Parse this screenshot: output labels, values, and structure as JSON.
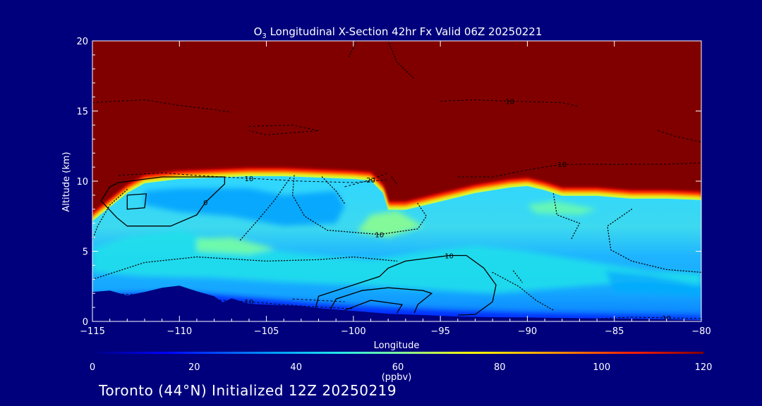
{
  "chart_data": {
    "type": "heatmap",
    "title_prefix": "O",
    "title_sub": "3",
    "title_rest": " Longitudinal X-Section 42hr  Fx Valid 06Z 20250221",
    "xlabel": "Longitude",
    "ylabel": "Altitude (km)",
    "xlim": [
      -115,
      -80
    ],
    "ylim": [
      0,
      20
    ],
    "xticks": [
      -115,
      -110,
      -105,
      -100,
      -95,
      -90,
      -85,
      -80
    ],
    "xtick_labels": [
      "−115",
      "−110",
      "−105",
      "−100",
      "−95",
      "−90",
      "−85",
      "−80"
    ],
    "yticks": [
      0,
      5,
      10,
      15,
      20
    ],
    "ytick_labels": [
      "0",
      "5",
      "10",
      "15",
      "20"
    ],
    "colorbar": {
      "ticks": [
        0,
        20,
        40,
        60,
        80,
        100,
        120
      ],
      "tick_labels": [
        "0",
        "20",
        "40",
        "60",
        "80",
        "100",
        "120"
      ],
      "units": "(ppbv)",
      "range": [
        0,
        120
      ]
    },
    "terrain_km": [
      [
        -115,
        2.1
      ],
      [
        -114,
        2.2
      ],
      [
        -113,
        1.85
      ],
      [
        -112,
        2.1
      ],
      [
        -111,
        2.4
      ],
      [
        -110,
        2.55
      ],
      [
        -109,
        2.15
      ],
      [
        -108,
        1.8
      ],
      [
        -107.5,
        1.35
      ],
      [
        -107,
        1.65
      ],
      [
        -106,
        1.25
      ],
      [
        -105,
        1.2
      ],
      [
        -104,
        1.15
      ],
      [
        -103,
        1.1
      ],
      [
        -102,
        0.95
      ],
      [
        -101,
        0.85
      ],
      [
        -100,
        0.75
      ],
      [
        -99,
        0.65
      ],
      [
        -98,
        0.55
      ],
      [
        -97,
        0.5
      ],
      [
        -96,
        0.45
      ],
      [
        -95,
        0.4
      ],
      [
        -94,
        0.35
      ],
      [
        -92,
        0.3
      ],
      [
        -90,
        0.28
      ],
      [
        -88,
        0.25
      ],
      [
        -86,
        0.22
      ],
      [
        -84,
        0.2
      ],
      [
        -82,
        0.15
      ],
      [
        -80,
        0.1
      ]
    ],
    "tropopause_km": [
      [
        -115,
        7.2
      ],
      [
        -114,
        8.2
      ],
      [
        -113,
        9.2
      ],
      [
        -112,
        9.9
      ],
      [
        -110,
        10.2
      ],
      [
        -108,
        10.3
      ],
      [
        -106,
        10.4
      ],
      [
        -104,
        10.4
      ],
      [
        -102,
        10.3
      ],
      [
        -100,
        10.2
      ],
      [
        -99,
        10.1
      ],
      [
        -98.3,
        9.2
      ],
      [
        -98,
        8.0
      ],
      [
        -97,
        8.0
      ],
      [
        -95,
        8.6
      ],
      [
        -93,
        9.2
      ],
      [
        -91,
        9.6
      ],
      [
        -90,
        9.7
      ],
      [
        -89,
        9.4
      ],
      [
        -88,
        9.0
      ],
      [
        -86,
        9.0
      ],
      [
        -84,
        8.8
      ],
      [
        -82,
        8.8
      ],
      [
        -80,
        8.7
      ]
    ],
    "ozone_bands": [
      {
        "polygon": [
          [
            -112,
            9.3
          ],
          [
            -110,
            9.5
          ],
          [
            -106,
            9.5
          ],
          [
            -104,
            9.0
          ],
          [
            -101,
            9.3
          ],
          [
            -100.5,
            8.2
          ],
          [
            -101,
            7.0
          ],
          [
            -104,
            6.8
          ],
          [
            -107,
            7.5
          ],
          [
            -110,
            7.8
          ],
          [
            -112,
            8.3
          ]
        ],
        "ppbv": 36
      },
      {
        "polygon": [
          [
            -115,
            5.2
          ],
          [
            -113,
            6.0
          ],
          [
            -110,
            6.5
          ],
          [
            -107,
            5.5
          ],
          [
            -104,
            5.0
          ],
          [
            -101,
            4.6
          ],
          [
            -99,
            4.4
          ],
          [
            -96,
            5.0
          ],
          [
            -93,
            5.4
          ],
          [
            -90,
            5.0
          ],
          [
            -87,
            4.4
          ],
          [
            -85,
            4.0
          ],
          [
            -83,
            3.6
          ],
          [
            -80,
            3.4
          ],
          [
            -80,
            2.6
          ],
          [
            -84,
            2.8
          ],
          [
            -88,
            2.4
          ],
          [
            -92,
            2.0
          ],
          [
            -96,
            2.3
          ],
          [
            -100,
            2.6
          ],
          [
            -104,
            2.8
          ],
          [
            -108,
            3.1
          ],
          [
            -112,
            3.2
          ],
          [
            -115,
            3.5
          ]
        ],
        "ppbv": 47
      },
      {
        "polygon": [
          [
            -109,
            5.9
          ],
          [
            -107,
            6.0
          ],
          [
            -104.5,
            5.2
          ],
          [
            -106,
            4.8
          ],
          [
            -109,
            5.0
          ]
        ],
        "ppbv": 60
      },
      {
        "polygon": [
          [
            -99,
            7.6
          ],
          [
            -97.5,
            7.9
          ],
          [
            -96,
            6.8
          ],
          [
            -98,
            6.0
          ],
          [
            -99.8,
            6.4
          ]
        ],
        "ppbv": 62
      },
      {
        "polygon": [
          [
            -90,
            8.3
          ],
          [
            -88.5,
            8.6
          ],
          [
            -86,
            8.0
          ],
          [
            -87,
            7.6
          ],
          [
            -89.5,
            7.7
          ]
        ],
        "ppbv": 58
      },
      {
        "polygon": [
          [
            -85.5,
            3.6
          ],
          [
            -83,
            3.3
          ],
          [
            -81,
            2.8
          ],
          [
            -80,
            2.5
          ],
          [
            -80,
            1.8
          ],
          [
            -85,
            2.1
          ]
        ],
        "ppbv": 38
      },
      {
        "polygon": [
          [
            -115,
            1.9
          ],
          [
            -110,
            2.1
          ],
          [
            -105,
            1.6
          ],
          [
            -100,
            1.1
          ],
          [
            -95,
            0.8
          ],
          [
            -90,
            0.6
          ],
          [
            -85,
            0.5
          ],
          [
            -80,
            0.4
          ],
          [
            -80,
            0
          ],
          [
            -115,
            0
          ]
        ],
        "ppbv": 18
      }
    ],
    "solid_contours": [
      {
        "label": "0",
        "points": [
          [
            -114.0,
            9.6
          ],
          [
            -113.5,
            9.9
          ],
          [
            -111,
            10.3
          ],
          [
            -109,
            10.3
          ],
          [
            -107.4,
            10.3
          ],
          [
            -107.4,
            9.8
          ],
          [
            -108.5,
            8.5
          ],
          [
            -109,
            7.6
          ],
          [
            -110.5,
            6.8
          ],
          [
            -113,
            6.8
          ],
          [
            -113.6,
            7.4
          ],
          [
            -114.5,
            8.6
          ],
          [
            -114.0,
            9.6
          ]
        ]
      },
      {
        "label": "",
        "points": [
          [
            -113.0,
            9.0
          ],
          [
            -111.9,
            9.1
          ],
          [
            -112.0,
            8.1
          ],
          [
            -113.0,
            8.0
          ],
          [
            -113.0,
            9.0
          ]
        ]
      },
      {
        "label": "10",
        "points": [
          [
            -102.2,
            0.8
          ],
          [
            -102,
            1.8
          ],
          [
            -100,
            2.6
          ],
          [
            -98.5,
            3.2
          ],
          [
            -98,
            3.8
          ],
          [
            -97,
            4.3
          ],
          [
            -94.5,
            4.7
          ],
          [
            -93.5,
            4.7
          ],
          [
            -92.5,
            3.8
          ],
          [
            -91.8,
            2.6
          ],
          [
            -92,
            1.4
          ],
          [
            -93,
            0.5
          ],
          [
            -94,
            0.45
          ]
        ]
      },
      {
        "label": "",
        "points": [
          [
            -101.3,
            0.9
          ],
          [
            -101,
            1.6
          ],
          [
            -99.5,
            2.2
          ],
          [
            -98,
            2.4
          ],
          [
            -96,
            2.2
          ],
          [
            -95.5,
            2.0
          ],
          [
            -96.3,
            1.2
          ],
          [
            -96.5,
            0.6
          ]
        ]
      },
      {
        "label": "",
        "points": [
          [
            -100.5,
            0.8
          ],
          [
            -99,
            1.5
          ],
          [
            -97.2,
            1.2
          ],
          [
            -97.5,
            0.6
          ]
        ]
      }
    ],
    "dashed_contours": [
      {
        "label": "10",
        "points": [
          [
            -113.5,
            10.4
          ],
          [
            -111,
            10.6
          ],
          [
            -109,
            10.4
          ],
          [
            -106,
            10.2
          ],
          [
            -103,
            10.0
          ],
          [
            -100,
            9.9
          ],
          [
            -98,
            10.1
          ]
        ]
      },
      {
        "label": "20",
        "points": [
          [
            -100.5,
            9.6
          ],
          [
            -99,
            10.1
          ],
          [
            -98,
            10.6
          ]
        ]
      },
      {
        "label": "10",
        "points": [
          [
            -94,
            10.3
          ],
          [
            -92,
            10.3
          ],
          [
            -90,
            10.8
          ],
          [
            -88,
            11.2
          ],
          [
            -85,
            11.2
          ],
          [
            -82,
            11.2
          ],
          [
            -80,
            11.3
          ]
        ]
      },
      {
        "label": "10",
        "points": [
          [
            -95,
            15.7
          ],
          [
            -93,
            15.8
          ],
          [
            -91,
            15.7
          ],
          [
            -88,
            15.6
          ],
          [
            -87,
            15.3
          ]
        ]
      },
      {
        "label": "",
        "points": [
          [
            -115,
            15.6
          ],
          [
            -112,
            15.8
          ],
          [
            -110,
            15.4
          ],
          [
            -108,
            15.1
          ],
          [
            -107,
            14.9
          ]
        ]
      },
      {
        "label": "",
        "points": [
          [
            -106,
            13.9
          ],
          [
            -103.5,
            14.0
          ],
          [
            -102,
            13.6
          ],
          [
            -105,
            13.3
          ],
          [
            -106,
            13.6
          ]
        ]
      },
      {
        "label": "",
        "points": [
          [
            -82.5,
            13.6
          ],
          [
            -81.5,
            13.2
          ],
          [
            -80,
            12.8
          ]
        ]
      },
      {
        "label": "10",
        "points": [
          [
            -115,
            2.0
          ],
          [
            -112,
            1.9
          ],
          [
            -109,
            1.6
          ],
          [
            -106,
            1.4
          ],
          [
            -103,
            1.1
          ],
          [
            -100,
            0.9
          ]
        ]
      },
      {
        "label": "",
        "points": [
          [
            -103.5,
            1.6
          ],
          [
            -100.5,
            1.4
          ]
        ]
      },
      {
        "label": "10",
        "points": [
          [
            -86,
            0.2
          ],
          [
            -84,
            0.3
          ],
          [
            -82,
            0.25
          ],
          [
            -80,
            0.2
          ]
        ]
      }
    ],
    "dotted_contours": [
      {
        "label": "",
        "points": [
          [
            -113,
            9.4
          ],
          [
            -114,
            8.3
          ],
          [
            -114.7,
            6.8
          ],
          [
            -115,
            5.8
          ]
        ]
      },
      {
        "label": "",
        "points": [
          [
            -106.5,
            5.8
          ],
          [
            -105.5,
            7.2
          ],
          [
            -104.5,
            8.7
          ],
          [
            -103.6,
            10.3
          ]
        ]
      },
      {
        "label": "10",
        "points": [
          [
            -103.4,
            10.4
          ],
          [
            -103.5,
            9.0
          ],
          [
            -102.8,
            7.5
          ],
          [
            -101.5,
            6.5
          ],
          [
            -98.5,
            6.2
          ],
          [
            -96.3,
            6.6
          ],
          [
            -95.8,
            7.5
          ],
          [
            -96.3,
            8.4
          ]
        ]
      },
      {
        "label": "",
        "points": [
          [
            -101.8,
            10.3
          ],
          [
            -101,
            9.3
          ],
          [
            -100.5,
            8.4
          ]
        ]
      },
      {
        "label": "",
        "points": [
          [
            -97.8,
            10.3
          ],
          [
            -97.5,
            9.8
          ]
        ]
      },
      {
        "label": "",
        "points": [
          [
            -99.8,
            20
          ],
          [
            -100.3,
            18.8
          ]
        ]
      },
      {
        "label": "",
        "points": [
          [
            -98,
            20
          ],
          [
            -97.5,
            18.5
          ],
          [
            -96.5,
            17.3
          ]
        ]
      },
      {
        "label": "",
        "points": [
          [
            -115,
            3.0
          ],
          [
            -112,
            4.2
          ],
          [
            -109,
            4.6
          ],
          [
            -105,
            4.3
          ],
          [
            -102,
            4.4
          ],
          [
            -100,
            4.6
          ],
          [
            -97.5,
            4.3
          ]
        ]
      },
      {
        "label": "",
        "points": [
          [
            -88.5,
            9.1
          ],
          [
            -88.3,
            7.6
          ],
          [
            -87,
            7.0
          ],
          [
            -87.5,
            5.8
          ]
        ]
      },
      {
        "label": "",
        "points": [
          [
            -84,
            8.0
          ],
          [
            -85.4,
            6.8
          ],
          [
            -85.2,
            5.1
          ],
          [
            -84,
            4.3
          ],
          [
            -82,
            3.7
          ],
          [
            -80,
            3.5
          ]
        ]
      },
      {
        "label": "",
        "points": [
          [
            -92,
            3.5
          ],
          [
            -90.5,
            2.5
          ],
          [
            -89.5,
            1.5
          ],
          [
            -88.5,
            0.8
          ]
        ]
      },
      {
        "label": "",
        "points": [
          [
            -90.8,
            3.6
          ],
          [
            -90.3,
            2.8
          ]
        ]
      }
    ]
  },
  "footer": {
    "text": "Toronto (44°N) Initialized 12Z 20250219"
  }
}
